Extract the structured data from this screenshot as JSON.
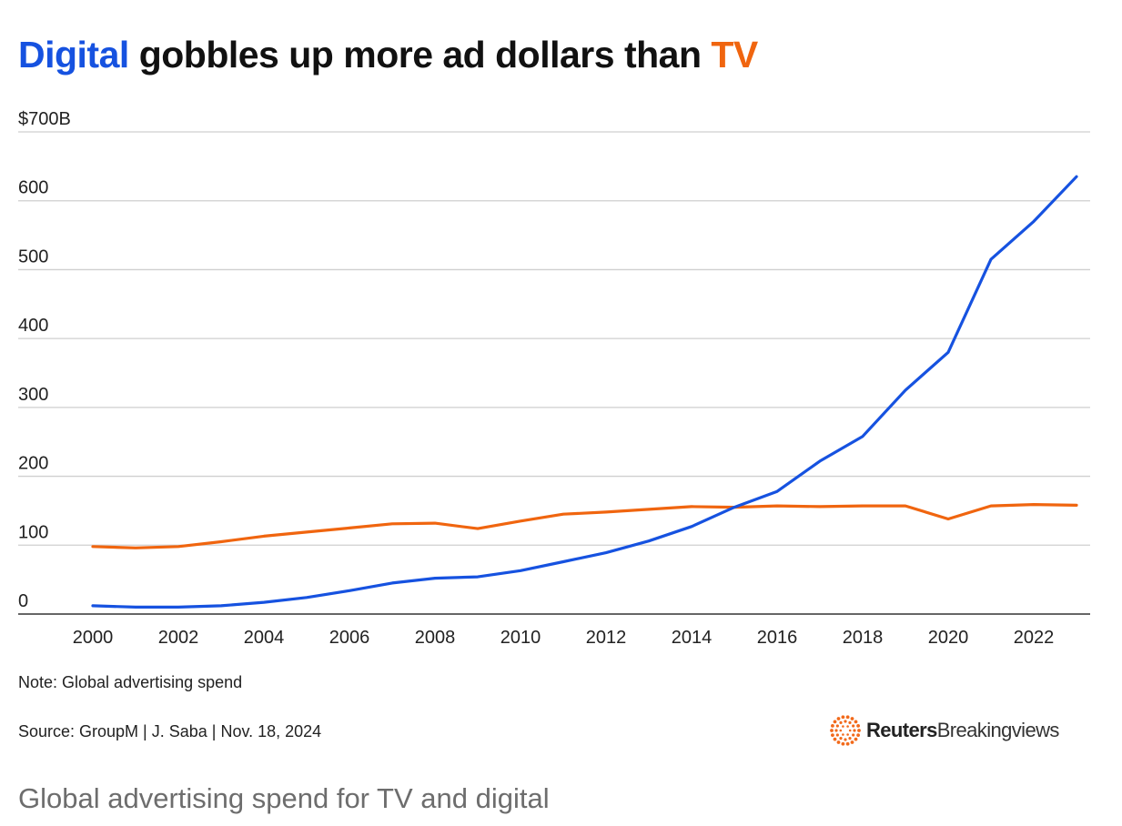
{
  "header": {
    "title_part1": "Digital",
    "title_part2": " gobbles up more ad dollars than ",
    "title_part3": "TV"
  },
  "colors": {
    "digital": "#1652e0",
    "tv": "#f0650f",
    "grid": "#cfcfcf",
    "axis": "#333333"
  },
  "chart_data": {
    "type": "line",
    "title": "Digital gobbles up more ad dollars than TV",
    "ylim": [
      0,
      700
    ],
    "xlim": [
      2000,
      2023
    ],
    "y_ticks": [
      0,
      100,
      200,
      300,
      400,
      500,
      600,
      700
    ],
    "y_tick_labels": [
      "0",
      "100",
      "200",
      "300",
      "400",
      "500",
      "600",
      "$700B"
    ],
    "x_ticks": [
      2000,
      2002,
      2004,
      2006,
      2008,
      2010,
      2012,
      2014,
      2016,
      2018,
      2020,
      2022
    ],
    "x_tick_labels": [
      "2000",
      "2002",
      "2004",
      "2006",
      "2008",
      "2010",
      "2012",
      "2014",
      "2016",
      "2018",
      "2020",
      "2022"
    ],
    "grid": true,
    "x": [
      2000,
      2001,
      2002,
      2003,
      2004,
      2005,
      2006,
      2007,
      2008,
      2009,
      2010,
      2011,
      2012,
      2013,
      2014,
      2015,
      2016,
      2017,
      2018,
      2019,
      2020,
      2021,
      2022,
      2023
    ],
    "series": [
      {
        "name": "Digital",
        "color": "#1652e0",
        "values": [
          12,
          10,
          10,
          12,
          17,
          24,
          34,
          45,
          52,
          54,
          63,
          76,
          89,
          106,
          127,
          155,
          178,
          222,
          258,
          325,
          380,
          515,
          570,
          635
        ]
      },
      {
        "name": "TV",
        "color": "#f0650f",
        "values": [
          98,
          96,
          98,
          105,
          113,
          119,
          125,
          131,
          132,
          124,
          135,
          145,
          148,
          152,
          156,
          155,
          157,
          156,
          157,
          157,
          138,
          157,
          159,
          158
        ]
      }
    ]
  },
  "footer": {
    "note": "Note: Global advertising spend",
    "source": "Source: GroupM | J. Saba | Nov. 18, 2024",
    "logo_bold": "Reuters",
    "logo_light": "Breakingviews",
    "logo_icon": "reuters-dots-logo-icon"
  },
  "caption": "Global advertising spend for TV and digital"
}
